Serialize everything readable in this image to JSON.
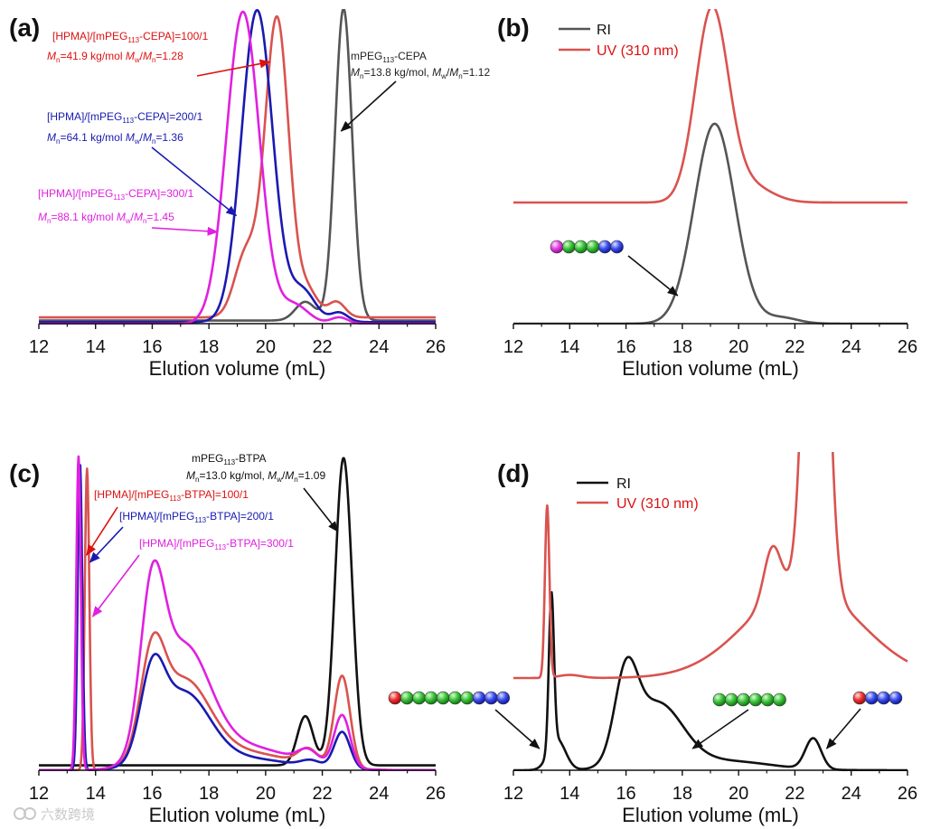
{
  "figure": {
    "watermark": "六数跨境",
    "colors": {
      "black": "#111111",
      "grey": "#555555",
      "red": "#d9534f",
      "darkred": "#dd1111",
      "blue": "#1a1ab0",
      "magenta": "#e020e0",
      "bead_green": "#2aa82a",
      "bead_blue": "#2a3be0",
      "bead_magenta": "#d83ad8",
      "bead_red": "#e02828"
    }
  },
  "chart_data": [
    {
      "panel": "(a)",
      "type": "line",
      "xlabel": "Elution volume (mL)",
      "xlim": [
        12,
        26
      ],
      "xticks": [
        "12",
        "14",
        "16",
        "18",
        "20",
        "22",
        "24",
        "26"
      ],
      "ylim": [
        0,
        1
      ],
      "series": [
        {
          "name": "mPEG113-CEPA",
          "color": "#555555",
          "peaks": [
            {
              "mu": 22.75,
              "sigma": 0.3,
              "amp": 1.0
            },
            {
              "mu": 21.4,
              "sigma": 0.35,
              "amp": 0.06
            }
          ],
          "baseline": 0.01
        },
        {
          "name": "[HPMA]/[mPEG113-CEPA]=100/1",
          "color": "#d9534f",
          "peaks": [
            {
              "mu": 20.4,
              "sigma": 0.42,
              "amp": 0.96
            },
            {
              "mu": 19.3,
              "sigma": 0.4,
              "amp": 0.2
            },
            {
              "mu": 21.5,
              "sigma": 0.35,
              "amp": 0.08
            },
            {
              "mu": 22.5,
              "sigma": 0.3,
              "amp": 0.05
            }
          ],
          "baseline": 0.02
        },
        {
          "name": "[HPMA]/[mPEG113-CEPA]=200/1",
          "color": "#1a1ab0",
          "peaks": [
            {
              "mu": 19.7,
              "sigma": 0.55,
              "amp": 1.0
            },
            {
              "mu": 21.3,
              "sigma": 0.45,
              "amp": 0.1
            },
            {
              "mu": 22.6,
              "sigma": 0.3,
              "amp": 0.03
            }
          ],
          "baseline": 0.005
        },
        {
          "name": "[HPMA]/[mPEG113-CEPA]=300/1",
          "color": "#e020e0",
          "peaks": [
            {
              "mu": 19.2,
              "sigma": 0.58,
              "amp": 1.0
            },
            {
              "mu": 21.0,
              "sigma": 0.5,
              "amp": 0.06
            },
            {
              "mu": 22.6,
              "sigma": 0.3,
              "amp": 0.02
            }
          ],
          "baseline": 0.0
        }
      ],
      "annotations": [
        {
          "series": "[HPMA]/[mPEG113-CEPA]=100/1",
          "label": "[HPMA]/[mPEG113-CEPA]=100/1",
          "detail": "Mn=41.9 kg/mol Mw/Mn=1.28",
          "target_x": 20.15
        },
        {
          "series": "[HPMA]/[mPEG113-CEPA]=200/1",
          "label": "[HPMA]/[mPEG113-CEPA]=200/1",
          "detail": "Mn=64.1 kg/mol Mw/Mn=1.36",
          "target_x": 18.9
        },
        {
          "series": "[HPMA]/[mPEG113-CEPA]=300/1",
          "label": "[HPMA]/[mPEG113-CEPA]=300/1",
          "detail": "Mn=88.1 kg/mol Mw/Mn=1.45",
          "target_x": 18.3
        },
        {
          "series": "mPEG113-CEPA",
          "label": "mPEG113-CEPA",
          "detail": "Mn=13.8 kg/mol, Mw/Mn=1.12",
          "target_x": 22.6
        }
      ]
    },
    {
      "panel": "(b)",
      "type": "line",
      "xlabel": "Elution volume (mL)",
      "xlim": [
        12,
        26
      ],
      "xticks": [
        "12",
        "14",
        "16",
        "18",
        "20",
        "22",
        "24",
        "26"
      ],
      "ylim": [
        0,
        1
      ],
      "legend": {
        "position": "top-left",
        "entries": [
          "RI",
          "UV (310 nm)"
        ]
      },
      "series": [
        {
          "name": "RI",
          "color": "#555555",
          "peaks": [
            {
              "mu": 19.15,
              "sigma": 0.72,
              "amp": 0.66
            },
            {
              "mu": 21.5,
              "sigma": 0.6,
              "amp": 0.02
            }
          ],
          "baseline": 0.0
        },
        {
          "name": "UV (310 nm)",
          "color": "#d9534f",
          "peaks": [
            {
              "mu": 19.05,
              "sigma": 0.58,
              "amp": 0.63
            },
            {
              "mu": 20.3,
              "sigma": 0.8,
              "amp": 0.06
            }
          ],
          "baseline": 0.4
        }
      ],
      "beads": [
        {
          "colors": [
            "magenta",
            "green",
            "green",
            "green",
            "blue",
            "blue"
          ],
          "target_x": 17.9
        }
      ]
    },
    {
      "panel": "(c)",
      "type": "line",
      "xlabel": "Elution volume (mL)",
      "xlim": [
        12,
        26
      ],
      "xticks": [
        "12",
        "14",
        "16",
        "18",
        "20",
        "22",
        "24",
        "26"
      ],
      "ylim": [
        0,
        1
      ],
      "series": [
        {
          "name": "mPEG113-BTPA",
          "color": "#111111",
          "peaks": [
            {
              "mu": 22.75,
              "sigma": 0.3,
              "amp": 1.0
            },
            {
              "mu": 21.4,
              "sigma": 0.28,
              "amp": 0.16
            }
          ],
          "baseline": 0.01
        },
        {
          "name": "[HPMA]/[mPEG113-BTPA]=100/1",
          "color": "#d9534f",
          "peaks": [
            {
              "mu": 13.7,
              "sigma": 0.08,
              "amp": 0.98
            },
            {
              "mu": 16.0,
              "sigma": 0.42,
              "amp": 0.3
            },
            {
              "mu": 17.1,
              "sigma": 0.9,
              "amp": 0.26
            },
            {
              "mu": 19.0,
              "sigma": 1.8,
              "amp": 0.06
            },
            {
              "mu": 22.7,
              "sigma": 0.28,
              "amp": 0.3
            },
            {
              "mu": 21.5,
              "sigma": 0.35,
              "amp": 0.05
            }
          ],
          "baseline": 0.0
        },
        {
          "name": "[HPMA]/[mPEG113-BTPA]=200/1",
          "color": "#1a1ab0",
          "peaks": [
            {
              "mu": 13.45,
              "sigma": 0.08,
              "amp": 1.0
            },
            {
              "mu": 16.0,
              "sigma": 0.42,
              "amp": 0.25
            },
            {
              "mu": 17.1,
              "sigma": 0.9,
              "amp": 0.23
            },
            {
              "mu": 19.0,
              "sigma": 1.8,
              "amp": 0.04
            },
            {
              "mu": 22.7,
              "sigma": 0.28,
              "amp": 0.12
            },
            {
              "mu": 21.6,
              "sigma": 0.35,
              "amp": 0.02
            }
          ],
          "baseline": 0.0
        },
        {
          "name": "[HPMA]/[mPEG113-BTPA]=300/1",
          "color": "#e020e0",
          "peaks": [
            {
              "mu": 13.4,
              "sigma": 0.08,
              "amp": 1.02
            },
            {
              "mu": 16.0,
              "sigma": 0.42,
              "amp": 0.48
            },
            {
              "mu": 17.1,
              "sigma": 0.9,
              "amp": 0.36
            },
            {
              "mu": 19.0,
              "sigma": 1.8,
              "amp": 0.08
            },
            {
              "mu": 22.7,
              "sigma": 0.28,
              "amp": 0.17
            },
            {
              "mu": 21.5,
              "sigma": 0.35,
              "amp": 0.04
            }
          ],
          "baseline": 0.0
        }
      ],
      "annotations": [
        {
          "series": "mPEG113-BTPA",
          "label": "mPEG113-BTPA",
          "detail": "Mn=13.0 kg/mol, Mw/Mn=1.09",
          "target_x": 22.55
        },
        {
          "series": "[HPMA]/[mPEG113-BTPA]=100/1",
          "label": "[HPMA]/[mPEG113-BTPA]=100/1",
          "detail": "",
          "target_x": 13.75
        },
        {
          "series": "[HPMA]/[mPEG113-BTPA]=200/1",
          "label": "[HPMA]/[mPEG113-BTPA]=200/1",
          "detail": "",
          "target_x": 13.8
        },
        {
          "series": "[HPMA]/[mPEG113-BTPA]=300/1",
          "label": "[HPMA]/[mPEG113-BTPA]=300/1",
          "detail": "",
          "target_x": 13.9
        }
      ]
    },
    {
      "panel": "(d)",
      "type": "line",
      "xlabel": "Elution volume (mL)",
      "xlim": [
        12,
        26
      ],
      "xticks": [
        "12",
        "14",
        "16",
        "18",
        "20",
        "22",
        "24",
        "26"
      ],
      "ylim": [
        0,
        1
      ],
      "legend": {
        "position": "top-left",
        "entries": [
          "RI",
          "UV (310 nm)"
        ]
      },
      "series": [
        {
          "name": "RI",
          "color": "#111111",
          "peaks": [
            {
              "mu": 13.35,
              "sigma": 0.09,
              "amp": 0.5
            },
            {
              "mu": 13.55,
              "sigma": 0.3,
              "amp": 0.1
            },
            {
              "mu": 16.0,
              "sigma": 0.4,
              "amp": 0.26
            },
            {
              "mu": 17.1,
              "sigma": 0.9,
              "amp": 0.21
            },
            {
              "mu": 19.5,
              "sigma": 1.6,
              "amp": 0.03
            },
            {
              "mu": 22.65,
              "sigma": 0.28,
              "amp": 0.1
            }
          ],
          "baseline": 0.0
        },
        {
          "name": "UV (310 nm)",
          "color": "#d9534f",
          "peaks": [
            {
              "mu": 13.2,
              "sigma": 0.08,
              "amp": 0.56
            },
            {
              "mu": 14.0,
              "sigma": 0.4,
              "amp": 0.01
            },
            {
              "mu": 21.2,
              "sigma": 0.3,
              "amp": 0.17
            },
            {
              "mu": 22.75,
              "sigma": 0.35,
              "amp": 2.0
            },
            {
              "mu": 22.3,
              "sigma": 2.0,
              "amp": 0.3
            }
          ],
          "baseline": 0.3
        }
      ],
      "beads": [
        {
          "colors": [
            "red",
            "green",
            "green",
            "green",
            "green",
            "green",
            "green",
            "blue",
            "blue",
            "blue"
          ],
          "target_x": 13.05
        },
        {
          "colors": [
            "green",
            "green",
            "green",
            "green",
            "green",
            "green"
          ],
          "target_x": 18.3
        },
        {
          "colors": [
            "red",
            "blue",
            "blue",
            "blue"
          ],
          "target_x": 23.0
        }
      ]
    }
  ]
}
